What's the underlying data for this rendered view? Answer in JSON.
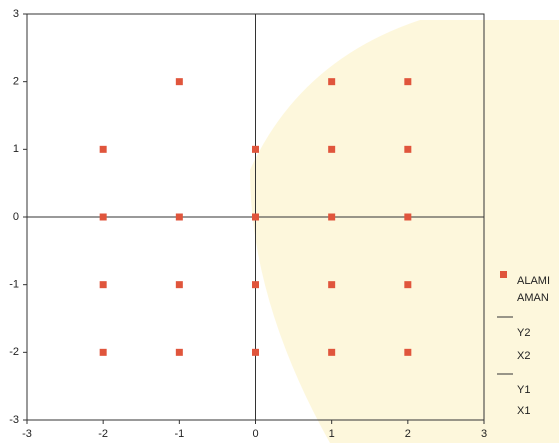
{
  "chart_data": {
    "type": "scatter",
    "series": [
      {
        "name": "ALAMI",
        "color": "#e0553c",
        "x": [
          -1,
          1,
          2,
          -2,
          0,
          1,
          2,
          -2,
          -1,
          0,
          1,
          2,
          -2,
          -1,
          0,
          1,
          2,
          -2,
          -1,
          0,
          1,
          2
        ],
        "values": [
          2,
          2,
          2,
          1,
          1,
          1,
          1,
          0,
          0,
          0,
          0,
          0,
          -1,
          -1,
          -1,
          -1,
          -1,
          -2,
          -2,
          -2,
          -2,
          -2
        ]
      }
    ],
    "legend_labels": [
      "AMAN",
      "Y2",
      "X2",
      "Y1",
      "X1"
    ],
    "xlim": [
      -3,
      3
    ],
    "xticks": [
      -3,
      -2,
      -1,
      0,
      1,
      2,
      3
    ],
    "ylim": [
      -3,
      3
    ],
    "yticks": [
      -3,
      -2,
      -1,
      0,
      1,
      2,
      3
    ]
  }
}
